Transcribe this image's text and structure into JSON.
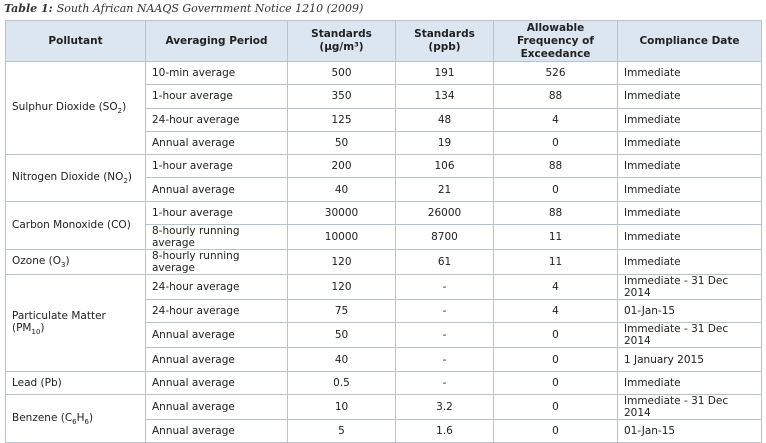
{
  "caption": {
    "label": "Table 1:",
    "text": "South African NAAQS Government Notice 1210 (2009)"
  },
  "table": {
    "headers": [
      "Pollutant",
      "Averaging Period",
      "Standards (µg/m³)",
      "Standards (ppb)",
      "Allowable Frequency of Exceedance",
      "Compliance Date"
    ],
    "groups": [
      {
        "pollutant": {
          "name": "Sulphur Dioxide (SO",
          "sub": "2",
          "tail": ")"
        },
        "rows": [
          [
            "10-min average",
            "500",
            "191",
            "526",
            "Immediate"
          ],
          [
            "1-hour average",
            "350",
            "134",
            "88",
            "Immediate"
          ],
          [
            "24-hour average",
            "125",
            "48",
            "4",
            "Immediate"
          ],
          [
            "Annual average",
            "50",
            "19",
            "0",
            "Immediate"
          ]
        ]
      },
      {
        "pollutant": {
          "name": "Nitrogen Dioxide (NO",
          "sub": "2",
          "tail": ")"
        },
        "rows": [
          [
            "1-hour average",
            "200",
            "106",
            "88",
            "Immediate"
          ],
          [
            "Annual average",
            "40",
            "21",
            "0",
            "Immediate"
          ]
        ]
      },
      {
        "pollutant": {
          "name": "Carbon Monoxide (CO)"
        },
        "rows": [
          [
            "1-hour average",
            "30000",
            "26000",
            "88",
            "Immediate"
          ],
          [
            "8-hourly running average",
            "10000",
            "8700",
            "11",
            "Immediate"
          ]
        ]
      },
      {
        "pollutant": {
          "name": "Ozone (O",
          "sub": "3",
          "tail": ")"
        },
        "rows": [
          [
            "8-hourly running average",
            "120",
            "61",
            "11",
            "Immediate"
          ]
        ]
      },
      {
        "pollutant": {
          "name": "Particulate Matter (PM",
          "sub": "10",
          "tail": ")"
        },
        "rows": [
          [
            "24-hour average",
            "120",
            "-",
            "4",
            "Immediate - 31 Dec 2014"
          ],
          [
            "24-hour average",
            "75",
            "-",
            "4",
            "01-Jan-15"
          ],
          [
            "Annual average",
            "50",
            "-",
            "0",
            "Immediate - 31 Dec 2014"
          ],
          [
            "Annual average",
            "40",
            "-",
            "0",
            "1 January 2015"
          ]
        ]
      },
      {
        "pollutant": {
          "name": "Lead (Pb)"
        },
        "rows": [
          [
            "Annual average",
            "0.5",
            "-",
            "0",
            "Immediate"
          ]
        ]
      },
      {
        "pollutant": {
          "name": "Benzene (C",
          "sub": "6",
          "tail": "H",
          "sub2": "6",
          "tail2": ")"
        },
        "rows": [
          [
            "Annual average",
            "10",
            "3.2",
            "0",
            "Immediate - 31 Dec 2014"
          ],
          [
            "Annual average",
            "5",
            "1.6",
            "0",
            "01-Jan-15"
          ]
        ]
      }
    ]
  }
}
